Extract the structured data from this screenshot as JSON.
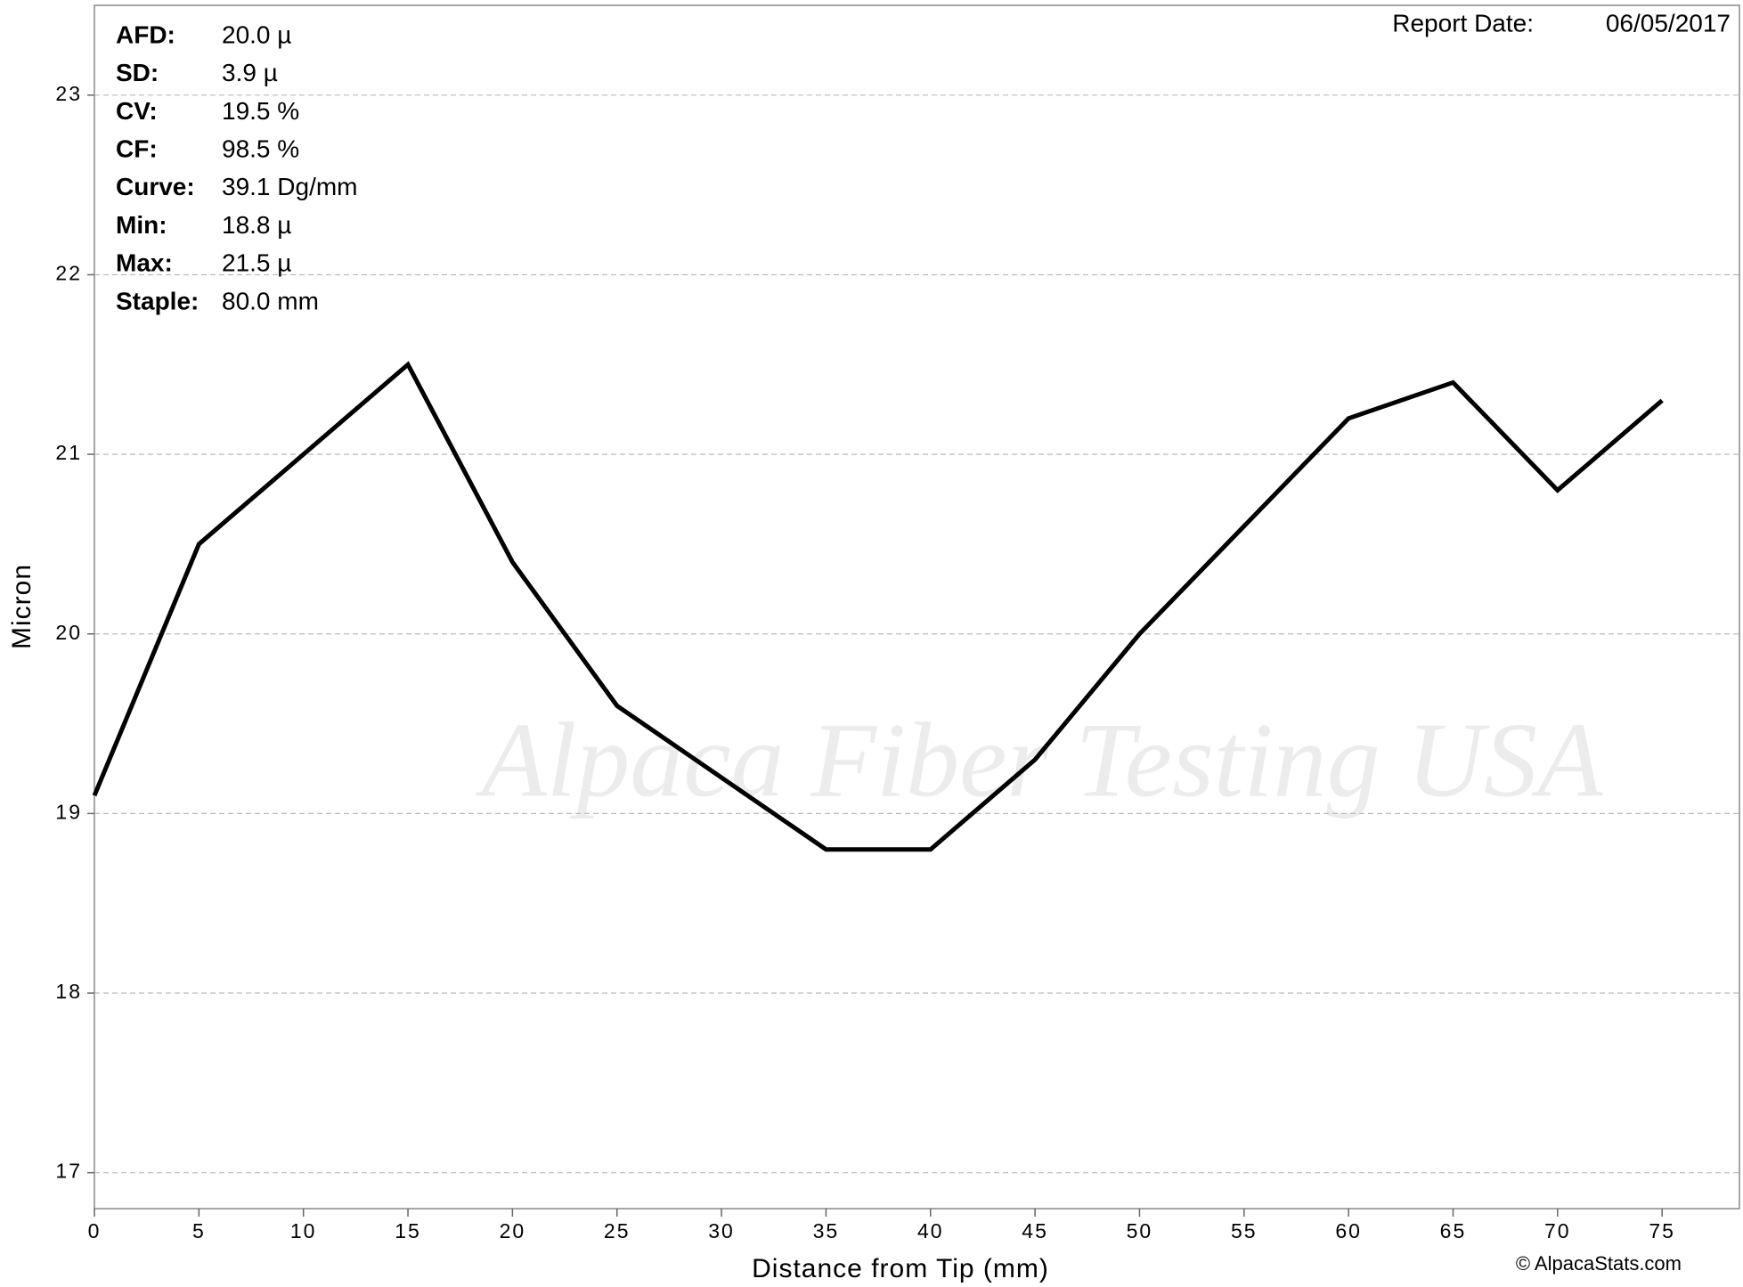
{
  "chart_data": {
    "type": "line",
    "x": [
      0,
      5,
      10,
      15,
      20,
      25,
      30,
      35,
      40,
      45,
      50,
      55,
      60,
      65,
      70,
      75
    ],
    "series": [
      {
        "color": "#000000",
        "values": [
          19.1,
          20.5,
          21.0,
          21.5,
          20.4,
          19.6,
          19.2,
          18.8,
          18.8,
          19.3,
          20.0,
          20.6,
          21.2,
          21.4,
          20.8,
          21.3
        ]
      }
    ],
    "x_label": "Distance from Tip (mm)",
    "y_label": "Micron",
    "xlim": [
      0,
      78.7
    ],
    "ylim": [
      16.8,
      23.5
    ],
    "xticks": [
      0,
      5,
      10,
      15,
      20,
      25,
      30,
      35,
      40,
      45,
      50,
      55,
      60,
      65,
      70,
      75
    ],
    "yticks": [
      17,
      18,
      19,
      20,
      21,
      22,
      23
    ],
    "grid": true,
    "stats": [
      {
        "label": "AFD:",
        "value": "20.0 µ"
      },
      {
        "label": "SD:",
        "value": "3.9 µ"
      },
      {
        "label": "CV:",
        "value": "19.5 %"
      },
      {
        "label": "CF:",
        "value": "98.5 %"
      },
      {
        "label": "Curve:",
        "value": "39.1 Dg/mm"
      },
      {
        "label": "Min:",
        "value": "18.8 µ"
      },
      {
        "label": "Max:",
        "value": "21.5 µ"
      },
      {
        "label": "Staple:",
        "value": "80.0 mm"
      }
    ],
    "report_date_label": "Report Date:",
    "report_date": "06/05/2017",
    "watermark": "Alpaca Fiber Testing USA",
    "copyright": "© AlpacaStats.com"
  }
}
